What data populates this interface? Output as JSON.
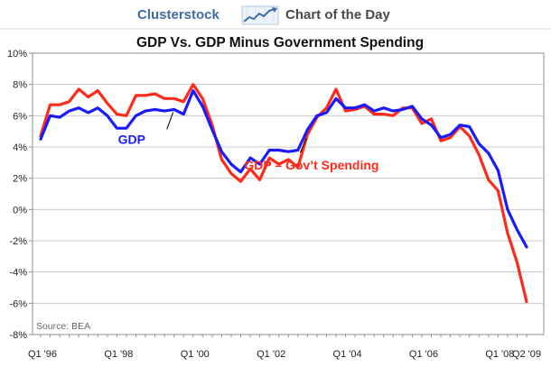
{
  "header": {
    "brand": "Clusterstock",
    "subtitle": "Chart of the Day",
    "logo_icon": "trend-chart-icon"
  },
  "colors": {
    "gdp": "#1a1aff",
    "gdp_minus_gov": "#ff2a1a",
    "grid": "#c8c8c8",
    "brand": "#3d6ea8"
  },
  "chart_data": {
    "type": "line",
    "title": "GDP Vs. GDP Minus Government Spending",
    "xlabel": "",
    "ylabel": "",
    "source": "Source: BEA",
    "ylim": [
      -8,
      10
    ],
    "y_ticks": [
      -8,
      -6,
      -4,
      -2,
      0,
      2,
      4,
      6,
      8,
      10
    ],
    "y_tick_labels": [
      "-8%",
      "-6%",
      "-4%",
      "-2%",
      "0%",
      "2%",
      "4%",
      "6%",
      "8%",
      "10%"
    ],
    "x_ticks": [
      {
        "index": 0,
        "label": "Q1 '96"
      },
      {
        "index": 8,
        "label": "Q1 '98"
      },
      {
        "index": 16,
        "label": "Q1 '00"
      },
      {
        "index": 24,
        "label": "Q1 '02"
      },
      {
        "index": 32,
        "label": "Q1 '04"
      },
      {
        "index": 40,
        "label": "Q1 '06"
      },
      {
        "index": 48,
        "label": "Q1 '08"
      },
      {
        "index": 53,
        "label": "Q2 '09"
      }
    ],
    "annotations": [
      {
        "series": "GDP",
        "text": "GDP",
        "anchor_index": 14,
        "offset_y_units": -1.7
      },
      {
        "series": "GDP – Gov't Spending",
        "text": "GDP – Gov’t Spending",
        "anchor_index": 28,
        "offset_y_units": -3.5
      }
    ],
    "series": [
      {
        "name": "GDP",
        "color": "#1a1aff",
        "values": [
          4.5,
          6.0,
          5.9,
          6.3,
          6.5,
          6.2,
          6.5,
          6.0,
          5.2,
          5.2,
          6.0,
          6.3,
          6.4,
          6.3,
          6.4,
          6.1,
          7.6,
          6.6,
          5.1,
          3.7,
          2.9,
          2.4,
          3.3,
          2.9,
          3.8,
          3.8,
          3.7,
          3.8,
          5.1,
          6.0,
          6.2,
          7.1,
          6.5,
          6.5,
          6.7,
          6.3,
          6.5,
          6.3,
          6.4,
          6.6,
          5.8,
          5.4,
          4.6,
          4.8,
          5.4,
          5.3,
          4.2,
          3.6,
          2.5,
          0.0,
          -1.3,
          -2.4
        ]
      },
      {
        "name": "GDP – Gov't Spending",
        "color": "#ff2a1a",
        "values": [
          4.7,
          6.7,
          6.7,
          6.9,
          7.7,
          7.2,
          7.6,
          6.8,
          6.1,
          6.0,
          7.3,
          7.3,
          7.4,
          7.1,
          7.1,
          6.9,
          8.0,
          7.1,
          5.4,
          3.2,
          2.3,
          1.8,
          2.6,
          1.9,
          3.3,
          2.9,
          3.2,
          2.7,
          4.8,
          5.9,
          6.5,
          7.7,
          6.3,
          6.4,
          6.6,
          6.1,
          6.1,
          6.0,
          6.5,
          6.5,
          5.5,
          5.8,
          4.4,
          4.6,
          5.3,
          4.7,
          3.5,
          1.9,
          1.2,
          -1.5,
          -3.4,
          -5.9
        ]
      }
    ]
  }
}
